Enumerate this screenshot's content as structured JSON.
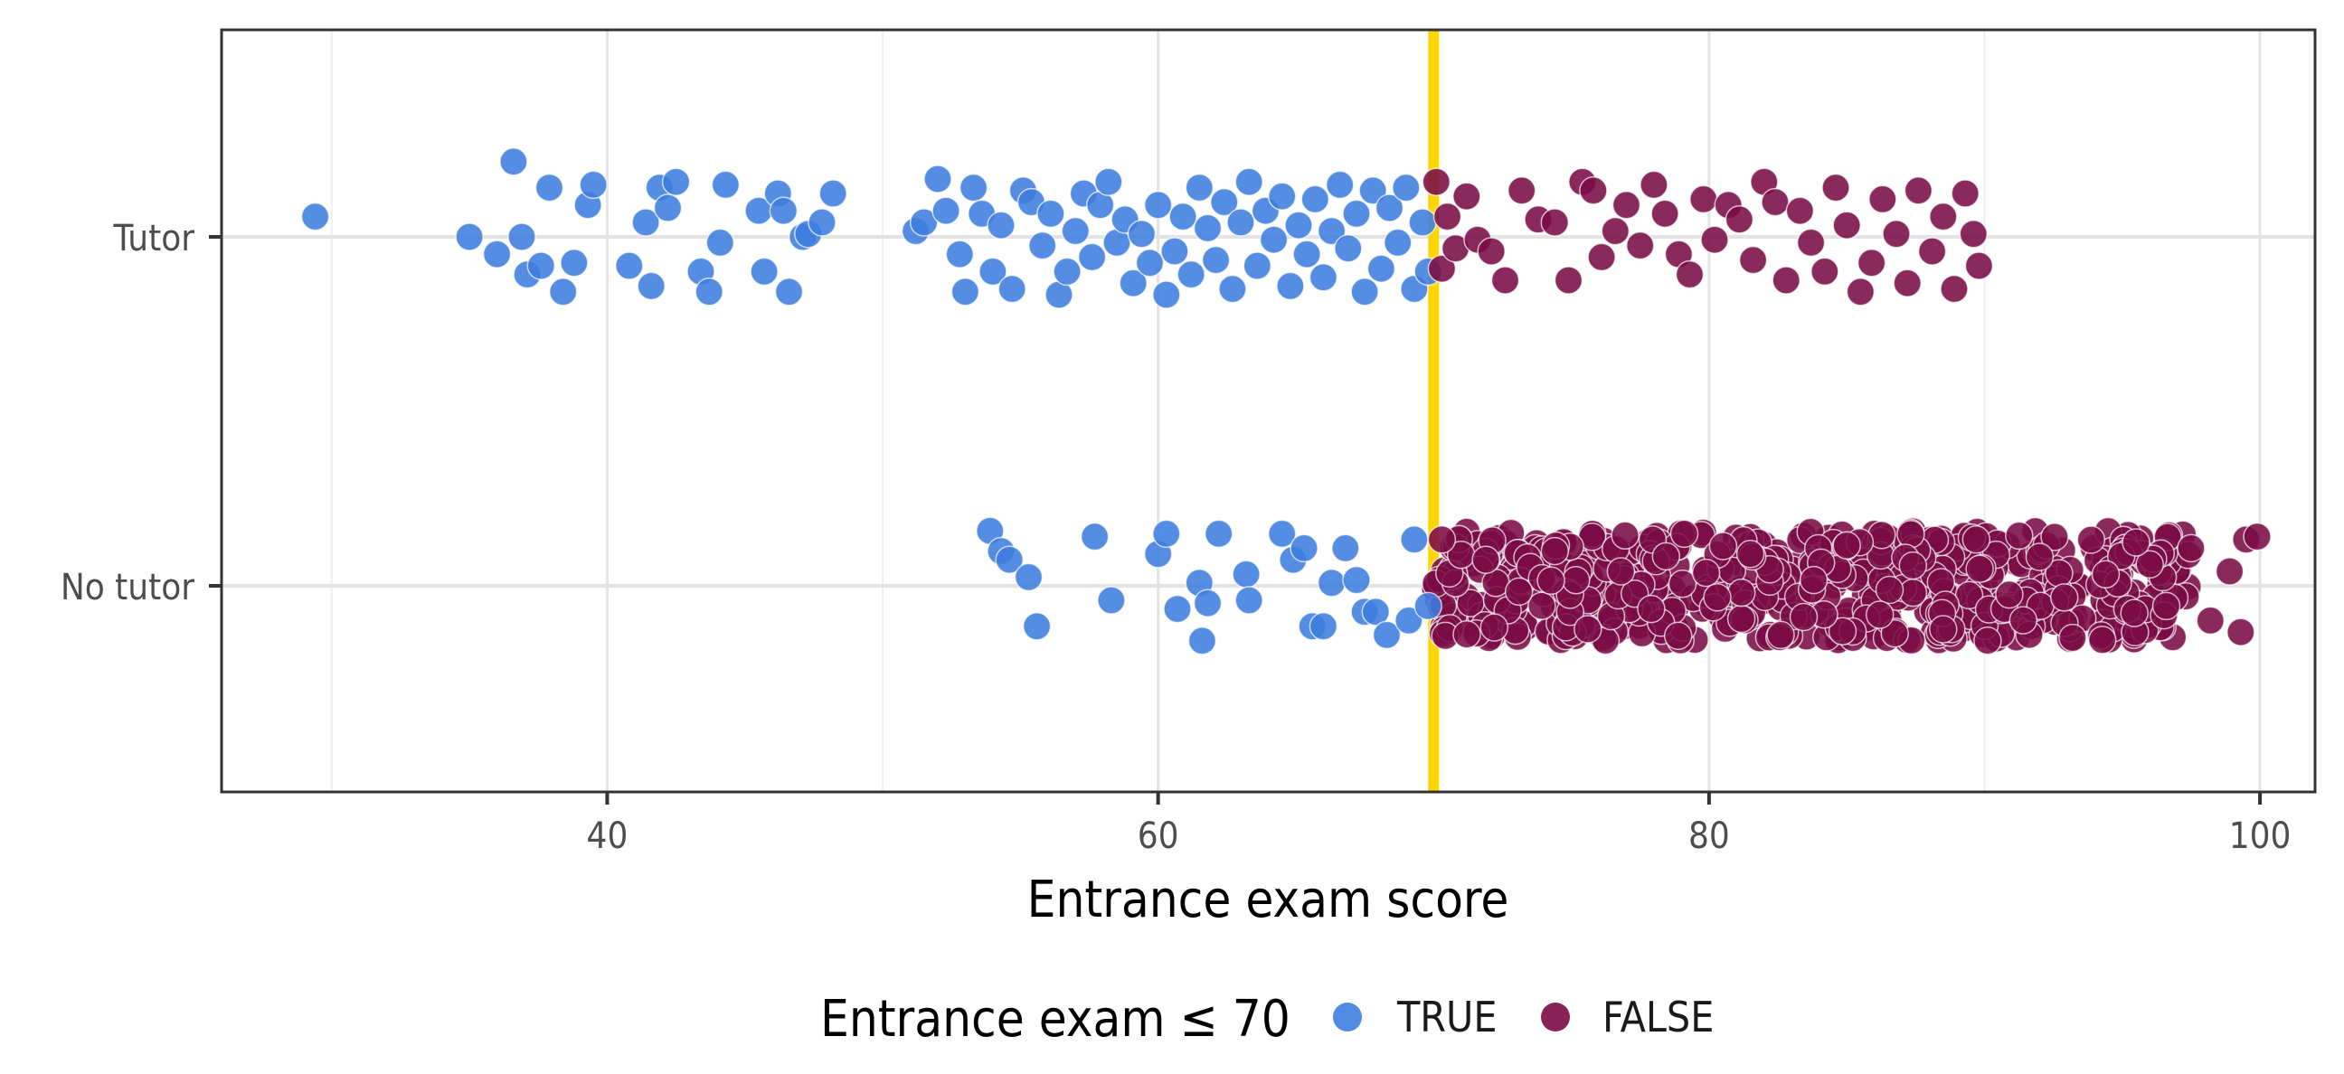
{
  "chart_data": {
    "type": "scatter",
    "title": "",
    "xlabel": "Entrance exam score",
    "ylabel": "",
    "xlim": [
      26,
      102
    ],
    "x_ticks": [
      40,
      60,
      80,
      100
    ],
    "categories": [
      "Tutor",
      "No tutor"
    ],
    "threshold": {
      "x": 70,
      "color": "#FFD500"
    },
    "grid": true,
    "legend": {
      "title": "Entrance exam ≤ 70",
      "position": "bottom",
      "entries": [
        {
          "label": "TRUE",
          "color": "#3D7DDF"
        },
        {
          "label": "FALSE",
          "color": "#7A0B45"
        }
      ]
    },
    "series": [
      {
        "name": "TRUE",
        "color": "#3D7DDF",
        "points": [
          [
            "Tutor",
            29.4,
            0.07
          ],
          [
            "Tutor",
            35,
            0
          ],
          [
            "Tutor",
            36,
            -0.06
          ],
          [
            "Tutor",
            36.6,
            0.26
          ],
          [
            "Tutor",
            36.9,
            0
          ],
          [
            "Tutor",
            37.1,
            -0.13
          ],
          [
            "Tutor",
            37.6,
            -0.1
          ],
          [
            "Tutor",
            37.9,
            0.17
          ],
          [
            "Tutor",
            38.4,
            -0.19
          ],
          [
            "Tutor",
            38.8,
            -0.09
          ],
          [
            "Tutor",
            39.3,
            0.11
          ],
          [
            "Tutor",
            39.5,
            0.18
          ],
          [
            "Tutor",
            40.8,
            -0.1
          ],
          [
            "Tutor",
            41.4,
            0.05
          ],
          [
            "Tutor",
            41.6,
            -0.17
          ],
          [
            "Tutor",
            41.9,
            0.17
          ],
          [
            "Tutor",
            42.2,
            0.1
          ],
          [
            "Tutor",
            42.5,
            0.19
          ],
          [
            "Tutor",
            43.4,
            -0.12
          ],
          [
            "Tutor",
            43.7,
            -0.19
          ],
          [
            "Tutor",
            44.1,
            -0.02
          ],
          [
            "Tutor",
            44.3,
            0.18
          ],
          [
            "Tutor",
            45.5,
            0.09
          ],
          [
            "Tutor",
            45.7,
            -0.12
          ],
          [
            "Tutor",
            46.2,
            0.15
          ],
          [
            "Tutor",
            46.4,
            0.09
          ],
          [
            "Tutor",
            46.6,
            -0.19
          ],
          [
            "Tutor",
            47.1,
            0
          ],
          [
            "Tutor",
            47.3,
            0.01
          ],
          [
            "Tutor",
            47.8,
            0.05
          ],
          [
            "Tutor",
            48.2,
            0.15
          ],
          [
            "Tutor",
            51.2,
            0.02
          ],
          [
            "Tutor",
            51.5,
            0.05
          ],
          [
            "Tutor",
            52,
            0.2
          ],
          [
            "Tutor",
            52.3,
            0.09
          ],
          [
            "Tutor",
            52.8,
            -0.06
          ],
          [
            "Tutor",
            53,
            -0.19
          ],
          [
            "Tutor",
            53.3,
            0.17
          ],
          [
            "Tutor",
            53.6,
            0.08
          ],
          [
            "Tutor",
            54,
            -0.12
          ],
          [
            "Tutor",
            54.3,
            0.04
          ],
          [
            "Tutor",
            54.7,
            -0.18
          ],
          [
            "Tutor",
            55.1,
            0.16
          ],
          [
            "Tutor",
            55.4,
            0.12
          ],
          [
            "Tutor",
            55.8,
            -0.03
          ],
          [
            "Tutor",
            56.1,
            0.08
          ],
          [
            "Tutor",
            56.4,
            -0.2
          ],
          [
            "Tutor",
            56.7,
            -0.12
          ],
          [
            "Tutor",
            57,
            0.02
          ],
          [
            "Tutor",
            57.3,
            0.15
          ],
          [
            "Tutor",
            57.6,
            -0.07
          ],
          [
            "Tutor",
            57.9,
            0.11
          ],
          [
            "Tutor",
            58.2,
            0.19
          ],
          [
            "Tutor",
            58.5,
            -0.02
          ],
          [
            "Tutor",
            58.8,
            0.06
          ],
          [
            "Tutor",
            59.1,
            -0.16
          ],
          [
            "Tutor",
            59.4,
            0.01
          ],
          [
            "Tutor",
            59.7,
            -0.09
          ],
          [
            "Tutor",
            60,
            0.11
          ],
          [
            "Tutor",
            60.3,
            -0.2
          ],
          [
            "Tutor",
            60.6,
            -0.05
          ],
          [
            "Tutor",
            60.9,
            0.07
          ],
          [
            "Tutor",
            61.2,
            -0.13
          ],
          [
            "Tutor",
            61.5,
            0.17
          ],
          [
            "Tutor",
            61.8,
            0.03
          ],
          [
            "Tutor",
            62.1,
            -0.08
          ],
          [
            "Tutor",
            62.4,
            0.12
          ],
          [
            "Tutor",
            62.7,
            -0.18
          ],
          [
            "Tutor",
            63,
            0.05
          ],
          [
            "Tutor",
            63.3,
            0.19
          ],
          [
            "Tutor",
            63.6,
            -0.1
          ],
          [
            "Tutor",
            63.9,
            0.09
          ],
          [
            "Tutor",
            64.2,
            -0.01
          ],
          [
            "Tutor",
            64.5,
            0.14
          ],
          [
            "Tutor",
            64.8,
            -0.17
          ],
          [
            "Tutor",
            65.1,
            0.04
          ],
          [
            "Tutor",
            65.4,
            -0.06
          ],
          [
            "Tutor",
            65.7,
            0.13
          ],
          [
            "Tutor",
            66,
            -0.14
          ],
          [
            "Tutor",
            66.3,
            0.02
          ],
          [
            "Tutor",
            66.6,
            0.18
          ],
          [
            "Tutor",
            66.9,
            -0.04
          ],
          [
            "Tutor",
            67.2,
            0.08
          ],
          [
            "Tutor",
            67.5,
            -0.19
          ],
          [
            "Tutor",
            67.8,
            0.16
          ],
          [
            "Tutor",
            68.1,
            -0.11
          ],
          [
            "Tutor",
            68.4,
            0.1
          ],
          [
            "Tutor",
            68.7,
            -0.02
          ],
          [
            "Tutor",
            69,
            0.17
          ],
          [
            "Tutor",
            69.3,
            -0.18
          ],
          [
            "Tutor",
            69.6,
            0.05
          ],
          [
            "Tutor",
            69.8,
            -0.12
          ],
          [
            "No tutor",
            53.9,
            0.19
          ],
          [
            "No tutor",
            54.3,
            0.12
          ],
          [
            "No tutor",
            54.6,
            0.09
          ],
          [
            "No tutor",
            55.3,
            0.03
          ],
          [
            "No tutor",
            55.6,
            -0.14
          ],
          [
            "No tutor",
            57.7,
            0.17
          ],
          [
            "No tutor",
            58.3,
            -0.05
          ],
          [
            "No tutor",
            60,
            0.11
          ],
          [
            "No tutor",
            60.3,
            0.18
          ],
          [
            "No tutor",
            60.7,
            -0.08
          ],
          [
            "No tutor",
            61.5,
            0.01
          ],
          [
            "No tutor",
            61.6,
            -0.19
          ],
          [
            "No tutor",
            61.8,
            -0.06
          ],
          [
            "No tutor",
            62.2,
            0.18
          ],
          [
            "No tutor",
            63.2,
            0.04
          ],
          [
            "No tutor",
            63.3,
            -0.05
          ],
          [
            "No tutor",
            64.5,
            0.18
          ],
          [
            "No tutor",
            64.9,
            0.09
          ],
          [
            "No tutor",
            65.3,
            0.13
          ],
          [
            "No tutor",
            65.6,
            -0.14
          ],
          [
            "No tutor",
            66,
            -0.14
          ],
          [
            "No tutor",
            66.3,
            0.01
          ],
          [
            "No tutor",
            66.8,
            0.13
          ],
          [
            "No tutor",
            67.2,
            0.02
          ],
          [
            "No tutor",
            67.5,
            -0.09
          ],
          [
            "No tutor",
            67.9,
            -0.09
          ],
          [
            "No tutor",
            68.3,
            -0.17
          ],
          [
            "No tutor",
            69.1,
            -0.12
          ],
          [
            "No tutor",
            69.3,
            0.16
          ],
          [
            "No tutor",
            69.8,
            -0.07
          ]
        ]
      },
      {
        "name": "FALSE",
        "color": "#7A0B45",
        "points": [
          [
            "Tutor",
            70.1,
            0.19
          ],
          [
            "Tutor",
            70.3,
            -0.11
          ],
          [
            "Tutor",
            70.5,
            0.07
          ],
          [
            "Tutor",
            70.8,
            -0.04
          ],
          [
            "Tutor",
            71.2,
            0.14
          ],
          [
            "Tutor",
            71.6,
            -0.01
          ],
          [
            "Tutor",
            72.1,
            -0.05
          ],
          [
            "Tutor",
            72.6,
            -0.15
          ],
          [
            "Tutor",
            73.2,
            0.16
          ],
          [
            "Tutor",
            73.8,
            0.06
          ],
          [
            "Tutor",
            74.4,
            0.05
          ],
          [
            "Tutor",
            74.9,
            -0.15
          ],
          [
            "Tutor",
            75.4,
            0.19
          ],
          [
            "Tutor",
            75.8,
            0.16
          ],
          [
            "Tutor",
            76.1,
            -0.07
          ],
          [
            "Tutor",
            76.6,
            0.02
          ],
          [
            "Tutor",
            77,
            0.11
          ],
          [
            "Tutor",
            77.5,
            -0.03
          ],
          [
            "Tutor",
            78,
            0.18
          ],
          [
            "Tutor",
            78.4,
            0.08
          ],
          [
            "Tutor",
            78.9,
            -0.06
          ],
          [
            "Tutor",
            79.3,
            -0.13
          ],
          [
            "Tutor",
            79.8,
            0.13
          ],
          [
            "Tutor",
            80.2,
            -0.01
          ],
          [
            "Tutor",
            80.7,
            0.11
          ],
          [
            "Tutor",
            81.1,
            0.06
          ],
          [
            "Tutor",
            81.6,
            -0.08
          ],
          [
            "Tutor",
            82,
            0.19
          ],
          [
            "Tutor",
            82.4,
            0.12
          ],
          [
            "Tutor",
            82.8,
            -0.15
          ],
          [
            "Tutor",
            83.3,
            0.09
          ],
          [
            "Tutor",
            83.7,
            -0.02
          ],
          [
            "Tutor",
            84.2,
            -0.12
          ],
          [
            "Tutor",
            84.6,
            0.17
          ],
          [
            "Tutor",
            85,
            0.04
          ],
          [
            "Tutor",
            85.5,
            -0.19
          ],
          [
            "Tutor",
            85.9,
            -0.09
          ],
          [
            "Tutor",
            86.3,
            0.13
          ],
          [
            "Tutor",
            86.8,
            0.01
          ],
          [
            "Tutor",
            87.2,
            -0.16
          ],
          [
            "Tutor",
            87.6,
            0.16
          ],
          [
            "Tutor",
            88.1,
            -0.05
          ],
          [
            "Tutor",
            88.5,
            0.07
          ],
          [
            "Tutor",
            88.9,
            -0.18
          ],
          [
            "Tutor",
            89.3,
            0.15
          ],
          [
            "Tutor",
            89.6,
            0.01
          ],
          [
            "Tutor",
            89.8,
            -0.1
          ],
          [
            "No tutor",
            70.3,
            0.16
          ],
          [
            "No tutor",
            71.9,
            0.09
          ],
          [
            "No tutor",
            73.1,
            -0.02
          ],
          [
            "No tutor",
            74.4,
            0.12
          ],
          [
            "No tutor",
            75.6,
            -0.15
          ],
          [
            "No tutor",
            76.8,
            0.05
          ],
          [
            "No tutor",
            77.9,
            -0.08
          ],
          [
            "No tutor",
            79.1,
            0.18
          ],
          [
            "No tutor",
            80.3,
            -0.04
          ],
          [
            "No tutor",
            81.5,
            0.11
          ],
          [
            "No tutor",
            82.6,
            -0.17
          ],
          [
            "No tutor",
            83.8,
            0.02
          ],
          [
            "No tutor",
            85,
            0.14
          ],
          [
            "No tutor",
            86.2,
            -0.1
          ],
          [
            "No tutor",
            87.4,
            0.07
          ],
          [
            "No tutor",
            88.5,
            -0.15
          ],
          [
            "No tutor",
            89.7,
            0.16
          ],
          [
            "No tutor",
            90.9,
            -0.03
          ],
          [
            "No tutor",
            92,
            0.1
          ],
          [
            "No tutor",
            93.2,
            -0.18
          ],
          [
            "No tutor",
            94.4,
            0.04
          ],
          [
            "No tutor",
            95.5,
            0.15
          ],
          [
            "No tutor",
            96.6,
            -0.07
          ],
          [
            "No tutor",
            97.5,
            0.13
          ],
          [
            "No tutor",
            98.2,
            -0.12
          ],
          [
            "No tutor",
            98.9,
            0.05
          ],
          [
            "No tutor",
            99.3,
            -0.16
          ],
          [
            "No tutor",
            99.5,
            0.16
          ],
          [
            "No tutor",
            99.9,
            0.17
          ]
        ],
        "dense_bands": [
          {
            "category": "No tutor",
            "x_range": [
              70,
              97.5
            ],
            "count": 620
          }
        ]
      }
    ]
  }
}
